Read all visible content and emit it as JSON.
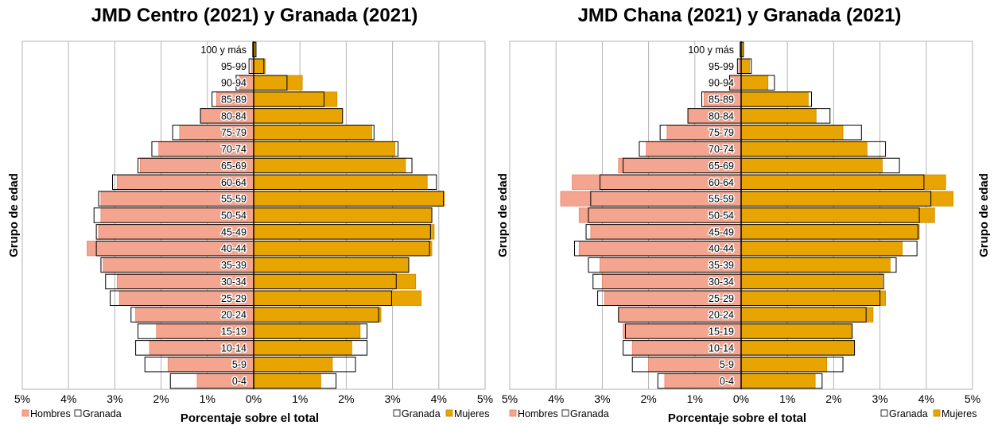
{
  "chart_data": [
    {
      "type": "bar",
      "subtype": "population-pyramid",
      "title": "JMD Centro (2021) y Granada (2021)",
      "xlabel": "Porcentaje sobre el total",
      "ylabel": "Grupo de edad",
      "ylabel_right": "",
      "xlim": [
        -5,
        5
      ],
      "xticks": [
        "5%",
        "4%",
        "3%",
        "2%",
        "1%",
        "0%",
        "1%",
        "2%",
        "3%",
        "4%",
        "5%"
      ],
      "grid": true,
      "categories": [
        "0-4",
        "5-9",
        "10-14",
        "15-19",
        "20-24",
        "25-29",
        "30-34",
        "35-39",
        "40-44",
        "45-49",
        "50-54",
        "55-59",
        "60-64",
        "65-69",
        "70-74",
        "75-79",
        "80-84",
        "85-89",
        "90-94",
        "95-99",
        "100 y más"
      ],
      "legend_left": [
        "Hombres",
        "Granada"
      ],
      "legend_right": [
        "Granada",
        "Mujeres"
      ],
      "series": [
        {
          "name": "Hombres",
          "color": "#f4a58f",
          "values": [
            1.22,
            1.85,
            2.25,
            2.1,
            2.55,
            2.9,
            2.95,
            3.25,
            3.6,
            3.35,
            3.3,
            3.3,
            2.95,
            2.45,
            2.05,
            1.6,
            1.15,
            0.8,
            0.3,
            0.05,
            0.02
          ]
        },
        {
          "name": "Mujeres",
          "color": "#e8a400",
          "values": [
            1.45,
            1.7,
            2.12,
            2.3,
            2.75,
            3.62,
            3.5,
            3.35,
            3.85,
            3.9,
            3.85,
            4.12,
            3.75,
            3.28,
            3.05,
            2.55,
            1.92,
            1.8,
            1.05,
            0.25,
            0.05
          ]
        },
        {
          "name": "Granada (hombres)",
          "values": [
            1.8,
            2.35,
            2.55,
            2.5,
            2.65,
            3.1,
            3.2,
            3.3,
            3.4,
            3.4,
            3.45,
            3.35,
            3.05,
            2.5,
            2.2,
            1.75,
            1.15,
            0.9,
            0.38,
            0.1,
            0.02
          ]
        },
        {
          "name": "Granada (mujeres)",
          "values": [
            1.78,
            2.2,
            2.45,
            2.45,
            2.7,
            2.98,
            3.08,
            3.35,
            3.8,
            3.82,
            3.85,
            4.1,
            3.95,
            3.42,
            3.12,
            2.6,
            1.92,
            1.52,
            0.72,
            0.22,
            0.05
          ]
        }
      ]
    },
    {
      "type": "bar",
      "subtype": "population-pyramid",
      "title": "JMD Chana (2021) y Granada (2021)",
      "xlabel": "Porcentaje sobre el total",
      "ylabel": "Grupo de edad",
      "ylabel_right": "Grupo de edad",
      "xlim": [
        -5,
        5
      ],
      "xticks": [
        "5%",
        "4%",
        "3%",
        "2%",
        "1%",
        "0%",
        "1%",
        "2%",
        "3%",
        "4%",
        "5%"
      ],
      "grid": true,
      "categories": [
        "0-4",
        "5-9",
        "10-14",
        "15-19",
        "20-24",
        "25-29",
        "30-34",
        "35-39",
        "40-44",
        "45-49",
        "50-54",
        "55-59",
        "60-64",
        "65-69",
        "70-74",
        "75-79",
        "80-84",
        "85-89",
        "90-94",
        "95-99",
        "100 y más"
      ],
      "legend_left": [
        "Hombres",
        "Granada"
      ],
      "legend_right": [
        "Granada",
        "Mujeres"
      ],
      "series": [
        {
          "name": "Hombres",
          "color": "#f4a58f",
          "values": [
            1.65,
            2.0,
            2.35,
            2.55,
            2.65,
            2.95,
            3.0,
            3.05,
            3.5,
            3.25,
            3.5,
            3.9,
            3.65,
            2.65,
            2.05,
            1.6,
            1.15,
            0.8,
            0.25,
            0.05,
            0.02
          ]
        },
        {
          "name": "Mujeres",
          "color": "#e8a400",
          "values": [
            1.6,
            1.85,
            2.45,
            2.38,
            2.85,
            3.12,
            3.05,
            3.22,
            3.48,
            3.85,
            4.18,
            4.58,
            4.42,
            3.05,
            2.72,
            2.2,
            1.62,
            1.45,
            0.58,
            0.18,
            0.03
          ]
        },
        {
          "name": "Granada (hombres)",
          "values": [
            1.8,
            2.35,
            2.55,
            2.5,
            2.65,
            3.1,
            3.2,
            3.3,
            3.6,
            3.35,
            3.3,
            3.25,
            3.05,
            2.55,
            2.2,
            1.75,
            1.15,
            0.85,
            0.25,
            0.08,
            0.02
          ]
        },
        {
          "name": "Granada (mujeres)",
          "values": [
            1.75,
            2.2,
            2.45,
            2.4,
            2.7,
            3.0,
            3.08,
            3.35,
            3.8,
            3.82,
            3.85,
            4.1,
            3.95,
            3.42,
            3.12,
            2.6,
            1.92,
            1.52,
            0.72,
            0.22,
            0.05
          ]
        }
      ]
    }
  ]
}
